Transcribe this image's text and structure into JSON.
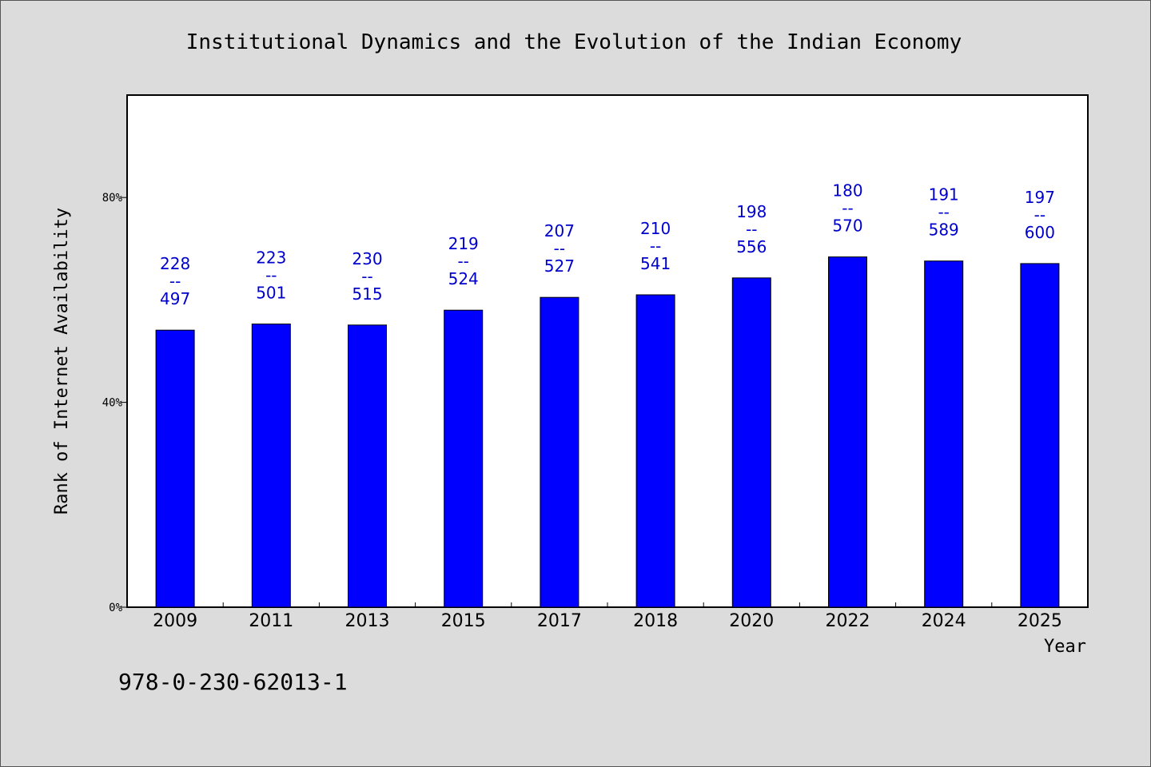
{
  "chart_data": {
    "type": "bar",
    "title": "Institutional Dynamics and the Evolution of the Indian Economy",
    "xlabel": "Year",
    "ylabel": "Rank of Internet Availability",
    "ylim": [
      0,
      100
    ],
    "yticks": [
      0,
      40,
      80
    ],
    "ytick_labels": [
      "0%",
      "40%",
      "80%"
    ],
    "categories": [
      "2009",
      "2011",
      "2013",
      "2015",
      "2017",
      "2018",
      "2020",
      "2022",
      "2024",
      "2025"
    ],
    "values": [
      54.1,
      55.3,
      55.1,
      58.0,
      60.5,
      61.0,
      64.3,
      68.4,
      67.6,
      67.1
    ],
    "labels": [
      {
        "top": "228",
        "sep": "--",
        "bottom": "497"
      },
      {
        "top": "223",
        "sep": "--",
        "bottom": "501"
      },
      {
        "top": "230",
        "sep": "--",
        "bottom": "515"
      },
      {
        "top": "219",
        "sep": "--",
        "bottom": "524"
      },
      {
        "top": "207",
        "sep": "--",
        "bottom": "527"
      },
      {
        "top": "210",
        "sep": "--",
        "bottom": "541"
      },
      {
        "top": "198",
        "sep": "--",
        "bottom": "556"
      },
      {
        "top": "180",
        "sep": "--",
        "bottom": "570"
      },
      {
        "top": "191",
        "sep": "--",
        "bottom": "589"
      },
      {
        "top": "197",
        "sep": "--",
        "bottom": "600"
      }
    ],
    "bar_color": "#0000ff",
    "label_color": "#0000cc",
    "grid": false,
    "legend": "none"
  },
  "footer": {
    "isbn": "978-0-230-62013-1"
  }
}
